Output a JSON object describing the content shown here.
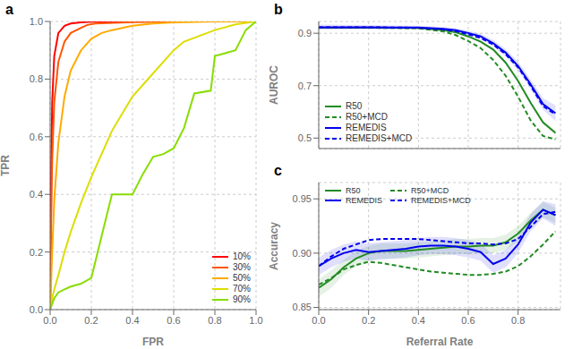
{
  "chart_data": [
    {
      "type": "line",
      "title": "a",
      "xlabel": "FPR",
      "ylabel": "TPR",
      "xlim": [
        0,
        1.0
      ],
      "ylim": [
        0,
        1.0
      ],
      "xticks": [
        {
          "value": 0,
          "label": "0.0"
        },
        0.2,
        0.4,
        0.6,
        0.8,
        {
          "value": 1,
          "label": "1.0"
        }
      ],
      "yticks": [
        {
          "value": 0,
          "label": "0.0"
        },
        0.2,
        0.4,
        0.6,
        0.8,
        {
          "value": 1,
          "label": "1.0"
        }
      ],
      "grid": true,
      "legend": "lower right",
      "series": [
        {
          "name": "10%",
          "color": "#ff0000",
          "line_style": "solid",
          "x": [
            0,
            0.005,
            0.01,
            0.02,
            0.04,
            0.07,
            0.1,
            0.15,
            0.2,
            0.4,
            0.6,
            0.8,
            1.0
          ],
          "values": [
            0,
            0.5,
            0.72,
            0.88,
            0.96,
            0.985,
            0.993,
            0.997,
            0.999,
            1.0,
            1.0,
            1.0,
            1.0
          ]
        },
        {
          "name": "30%",
          "color": "#ff5500",
          "line_style": "solid",
          "x": [
            0,
            0.005,
            0.01,
            0.02,
            0.04,
            0.07,
            0.1,
            0.15,
            0.18,
            0.22,
            0.4,
            0.6,
            0.8,
            1.0
          ],
          "values": [
            0,
            0.3,
            0.52,
            0.72,
            0.86,
            0.93,
            0.96,
            0.978,
            0.988,
            0.993,
            0.998,
            1.0,
            1.0,
            1.0
          ]
        },
        {
          "name": "50%",
          "color": "#ffaa00",
          "line_style": "solid",
          "x": [
            0,
            0.005,
            0.01,
            0.02,
            0.04,
            0.07,
            0.1,
            0.15,
            0.2,
            0.25,
            0.3,
            0.4,
            0.5,
            0.6,
            0.8,
            1.0
          ],
          "values": [
            0,
            0.1,
            0.2,
            0.38,
            0.58,
            0.74,
            0.83,
            0.9,
            0.94,
            0.96,
            0.97,
            0.985,
            0.993,
            0.997,
            1.0,
            1.0
          ]
        },
        {
          "name": "70%",
          "color": "#dddd00",
          "line_style": "solid",
          "x": [
            0,
            0.005,
            0.01,
            0.02,
            0.04,
            0.07,
            0.1,
            0.15,
            0.2,
            0.25,
            0.3,
            0.35,
            0.4,
            0.5,
            0.6,
            0.65,
            0.8,
            0.9,
            1.0
          ],
          "values": [
            0,
            0.02,
            0.04,
            0.07,
            0.12,
            0.2,
            0.27,
            0.37,
            0.46,
            0.54,
            0.62,
            0.68,
            0.74,
            0.82,
            0.9,
            0.93,
            0.97,
            0.99,
            1.0
          ]
        },
        {
          "name": "90%",
          "color": "#88dd00",
          "line_style": "solid",
          "x": [
            0,
            0.005,
            0.01,
            0.02,
            0.04,
            0.07,
            0.1,
            0.15,
            0.2,
            0.3,
            0.4,
            0.45,
            0.5,
            0.55,
            0.6,
            0.65,
            0.7,
            0.78,
            0.8,
            0.85,
            0.9,
            0.95,
            1.0
          ],
          "values": [
            0,
            0.01,
            0.02,
            0.04,
            0.06,
            0.07,
            0.08,
            0.09,
            0.11,
            0.4,
            0.4,
            0.47,
            0.53,
            0.54,
            0.56,
            0.63,
            0.75,
            0.76,
            0.88,
            0.89,
            0.9,
            0.97,
            1.0
          ]
        }
      ]
    },
    {
      "type": "line",
      "title": "b",
      "ylabel": "AUROC",
      "xlim": [
        0,
        0.97
      ],
      "ylim": [
        0.46,
        0.945
      ],
      "xticks": [
        0,
        0.2,
        0.4,
        0.6,
        0.8
      ],
      "yticks": [
        0.5,
        0.7,
        0.9
      ],
      "grid": true,
      "legend": "lower left",
      "tick_labels": "y",
      "series": [
        {
          "name": "R50",
          "color": "#228B22",
          "line_style": "solid",
          "x": [
            0,
            0.05,
            0.1,
            0.2,
            0.3,
            0.4,
            0.5,
            0.55,
            0.6,
            0.65,
            0.7,
            0.75,
            0.8,
            0.85,
            0.9,
            0.95
          ],
          "values": [
            0.921,
            0.921,
            0.921,
            0.921,
            0.921,
            0.92,
            0.912,
            0.904,
            0.888,
            0.868,
            0.838,
            0.788,
            0.718,
            0.635,
            0.56,
            0.52
          ],
          "upper": [
            0.924,
            0.924,
            0.924,
            0.923,
            0.923,
            0.922,
            0.915,
            0.907,
            0.891,
            0.872,
            0.842,
            0.792,
            0.722,
            0.64,
            0.565,
            0.528
          ],
          "lower": [
            0.918,
            0.918,
            0.918,
            0.919,
            0.919,
            0.918,
            0.909,
            0.901,
            0.885,
            0.864,
            0.834,
            0.784,
            0.714,
            0.63,
            0.555,
            0.512
          ]
        },
        {
          "name": "R50+MCD",
          "color": "#228B22",
          "line_style": "dashed",
          "x": [
            0,
            0.05,
            0.1,
            0.2,
            0.3,
            0.4,
            0.5,
            0.55,
            0.6,
            0.65,
            0.7,
            0.75,
            0.8,
            0.85,
            0.9,
            0.95
          ],
          "values": [
            0.921,
            0.921,
            0.921,
            0.921,
            0.92,
            0.919,
            0.907,
            0.893,
            0.87,
            0.843,
            0.798,
            0.738,
            0.658,
            0.568,
            0.508,
            0.495
          ]
        },
        {
          "name": "REMEDIS",
          "color": "#0000EE",
          "line_style": "solid",
          "x": [
            0,
            0.05,
            0.1,
            0.2,
            0.3,
            0.4,
            0.5,
            0.55,
            0.6,
            0.65,
            0.7,
            0.75,
            0.8,
            0.85,
            0.9,
            0.95
          ],
          "values": [
            0.923,
            0.923,
            0.923,
            0.923,
            0.922,
            0.922,
            0.917,
            0.912,
            0.901,
            0.888,
            0.862,
            0.826,
            0.775,
            0.706,
            0.63,
            0.595
          ],
          "upper": [
            0.933,
            0.933,
            0.932,
            0.931,
            0.93,
            0.929,
            0.924,
            0.919,
            0.91,
            0.898,
            0.874,
            0.84,
            0.792,
            0.725,
            0.652,
            0.625
          ],
          "lower": [
            0.913,
            0.913,
            0.914,
            0.915,
            0.914,
            0.915,
            0.91,
            0.905,
            0.892,
            0.878,
            0.85,
            0.812,
            0.758,
            0.687,
            0.608,
            0.565
          ]
        },
        {
          "name": "REMEDIS+MCD",
          "color": "#0000EE",
          "line_style": "dashed",
          "x": [
            0,
            0.05,
            0.1,
            0.2,
            0.3,
            0.4,
            0.5,
            0.55,
            0.6,
            0.65,
            0.7,
            0.75,
            0.8,
            0.85,
            0.9,
            0.95
          ],
          "values": [
            0.923,
            0.923,
            0.923,
            0.923,
            0.922,
            0.921,
            0.914,
            0.908,
            0.896,
            0.882,
            0.857,
            0.82,
            0.77,
            0.7,
            0.622,
            0.59
          ]
        }
      ]
    },
    {
      "type": "line",
      "title": "c",
      "xlabel": "Referral Rate",
      "ylabel": "Accuracy",
      "xlim": [
        0,
        0.97
      ],
      "ylim": [
        0.848,
        0.965
      ],
      "xticks": [
        {
          "value": 0,
          "label": "0.0"
        },
        0.2,
        0.4,
        0.6,
        0.8
      ],
      "yticks": [
        0.85,
        {
          "value": 0.9,
          "label": "0.90"
        },
        0.95
      ],
      "grid": true,
      "legend": "upper left",
      "series": [
        {
          "name": "R50",
          "color": "#228B22",
          "line_style": "solid",
          "x": [
            0,
            0.05,
            0.1,
            0.15,
            0.2,
            0.25,
            0.3,
            0.35,
            0.4,
            0.45,
            0.5,
            0.55,
            0.6,
            0.65,
            0.7,
            0.75,
            0.8,
            0.85,
            0.9,
            0.95
          ],
          "values": [
            0.868,
            0.876,
            0.887,
            0.895,
            0.9,
            0.902,
            0.902,
            0.902,
            0.903,
            0.904,
            0.905,
            0.906,
            0.906,
            0.907,
            0.907,
            0.91,
            0.918,
            0.93,
            0.94,
            0.935
          ],
          "upper": [
            0.876,
            0.884,
            0.894,
            0.902,
            0.907,
            0.909,
            0.909,
            0.909,
            0.91,
            0.911,
            0.912,
            0.913,
            0.913,
            0.914,
            0.914,
            0.917,
            0.925,
            0.937,
            0.947,
            0.942
          ],
          "lower": [
            0.86,
            0.868,
            0.88,
            0.888,
            0.893,
            0.895,
            0.895,
            0.895,
            0.896,
            0.897,
            0.898,
            0.899,
            0.899,
            0.9,
            0.9,
            0.903,
            0.911,
            0.923,
            0.933,
            0.928
          ]
        },
        {
          "name": "R50+MCD",
          "color": "#228B22",
          "line_style": "dashed",
          "x": [
            0,
            0.05,
            0.1,
            0.15,
            0.2,
            0.25,
            0.3,
            0.35,
            0.4,
            0.45,
            0.5,
            0.55,
            0.6,
            0.65,
            0.7,
            0.75,
            0.8,
            0.85,
            0.9,
            0.95
          ],
          "values": [
            0.871,
            0.877,
            0.885,
            0.889,
            0.892,
            0.891,
            0.889,
            0.887,
            0.885,
            0.883,
            0.882,
            0.881,
            0.88,
            0.88,
            0.881,
            0.883,
            0.888,
            0.897,
            0.908,
            0.92
          ]
        },
        {
          "name": "REMEDIS",
          "color": "#0000EE",
          "line_style": "solid",
          "x": [
            0,
            0.05,
            0.1,
            0.15,
            0.2,
            0.25,
            0.3,
            0.35,
            0.4,
            0.45,
            0.5,
            0.55,
            0.6,
            0.65,
            0.7,
            0.75,
            0.8,
            0.85,
            0.9,
            0.95
          ],
          "values": [
            0.888,
            0.895,
            0.9,
            0.903,
            0.901,
            0.902,
            0.903,
            0.904,
            0.906,
            0.907,
            0.907,
            0.906,
            0.904,
            0.901,
            0.89,
            0.895,
            0.908,
            0.928,
            0.94,
            0.935
          ],
          "upper": [
            0.896,
            0.903,
            0.908,
            0.911,
            0.909,
            0.91,
            0.911,
            0.912,
            0.914,
            0.915,
            0.915,
            0.914,
            0.912,
            0.909,
            0.898,
            0.903,
            0.916,
            0.936,
            0.948,
            0.945
          ],
          "lower": [
            0.88,
            0.887,
            0.892,
            0.895,
            0.893,
            0.894,
            0.895,
            0.896,
            0.898,
            0.899,
            0.899,
            0.898,
            0.896,
            0.893,
            0.882,
            0.887,
            0.9,
            0.92,
            0.932,
            0.925
          ]
        },
        {
          "name": "REMEDIS+MCD",
          "color": "#0000EE",
          "line_style": "dashed",
          "x": [
            0,
            0.05,
            0.1,
            0.15,
            0.2,
            0.25,
            0.3,
            0.35,
            0.4,
            0.45,
            0.5,
            0.55,
            0.6,
            0.65,
            0.7,
            0.75,
            0.8,
            0.85,
            0.9,
            0.95
          ],
          "values": [
            0.888,
            0.897,
            0.904,
            0.908,
            0.912,
            0.913,
            0.913,
            0.913,
            0.913,
            0.912,
            0.911,
            0.91,
            0.909,
            0.909,
            0.908,
            0.909,
            0.913,
            0.924,
            0.936,
            0.938
          ]
        }
      ]
    }
  ]
}
